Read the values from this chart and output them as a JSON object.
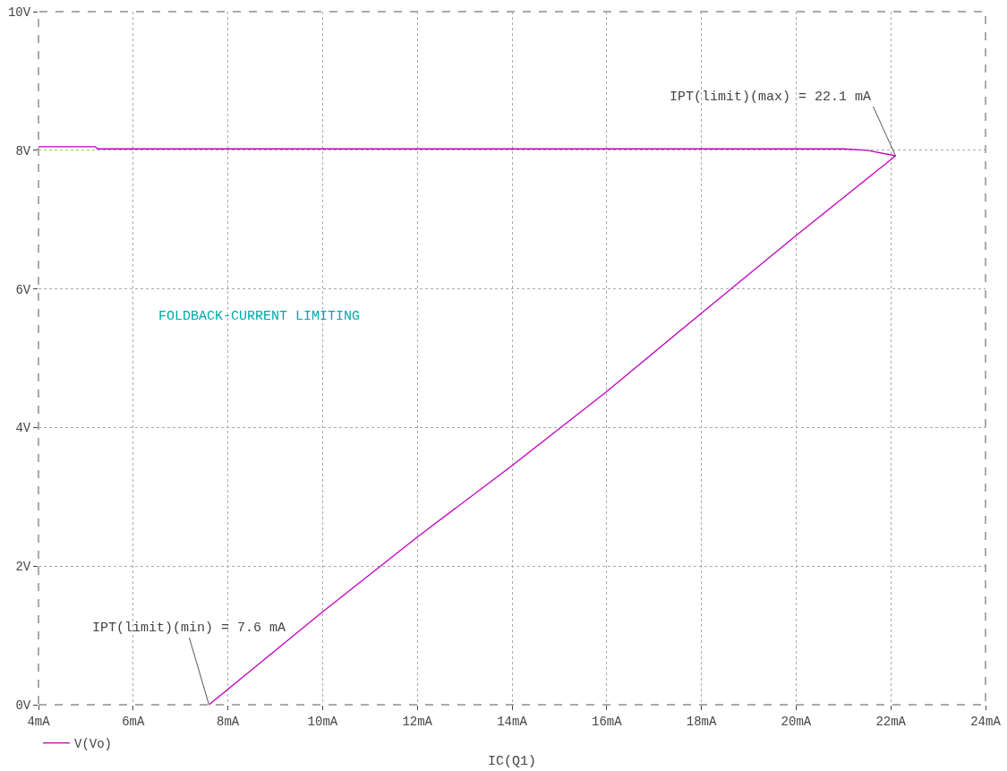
{
  "chart_data": {
    "type": "line",
    "xlabel": "IC(Q1)",
    "series": [
      {
        "name": "V(Vo)",
        "color": "#c000c0",
        "x": [
          4,
          5.2,
          5.25,
          8,
          12,
          16,
          20,
          21,
          21.5,
          22.1,
          20,
          18,
          16,
          14,
          12,
          10,
          7.6
        ],
        "values": [
          8.05,
          8.05,
          8.02,
          8.02,
          8.02,
          8.02,
          8.02,
          8.02,
          8.0,
          7.92,
          6.77,
          5.65,
          4.52,
          3.45,
          2.42,
          1.34,
          0
        ]
      }
    ],
    "xlim": [
      4,
      24
    ],
    "xticks": [
      {
        "value": 4,
        "label": "4mA"
      },
      {
        "value": 6,
        "label": "6mA"
      },
      {
        "value": 8,
        "label": "8mA"
      },
      {
        "value": 10,
        "label": "10mA"
      },
      {
        "value": 12,
        "label": "12mA"
      },
      {
        "value": 14,
        "label": "14mA"
      },
      {
        "value": 16,
        "label": "16mA"
      },
      {
        "value": 18,
        "label": "18mA"
      },
      {
        "value": 20,
        "label": "20mA"
      },
      {
        "value": 22,
        "label": "22mA"
      },
      {
        "value": 24,
        "label": "24mA"
      }
    ],
    "ylim": [
      0,
      10
    ],
    "yticks": [
      {
        "value": 0,
        "label": "0V"
      },
      {
        "value": 2,
        "label": "2V"
      },
      {
        "value": 4,
        "label": "4V"
      },
      {
        "value": 6,
        "label": "6V"
      },
      {
        "value": 8,
        "label": "8V"
      },
      {
        "value": 10,
        "label": "10V"
      }
    ],
    "annotations": [
      {
        "text": "IPT(limit)(max) = 22.1 mA",
        "x": 22.1,
        "y": 7.92
      },
      {
        "text": "IPT(limit)(min) = 7.6 mA",
        "x": 7.6,
        "y": 0
      },
      "FOLDBACK-CURRENT LIMITING"
    ],
    "grid": true,
    "legend": "bottom left",
    "line_style": "solid"
  }
}
